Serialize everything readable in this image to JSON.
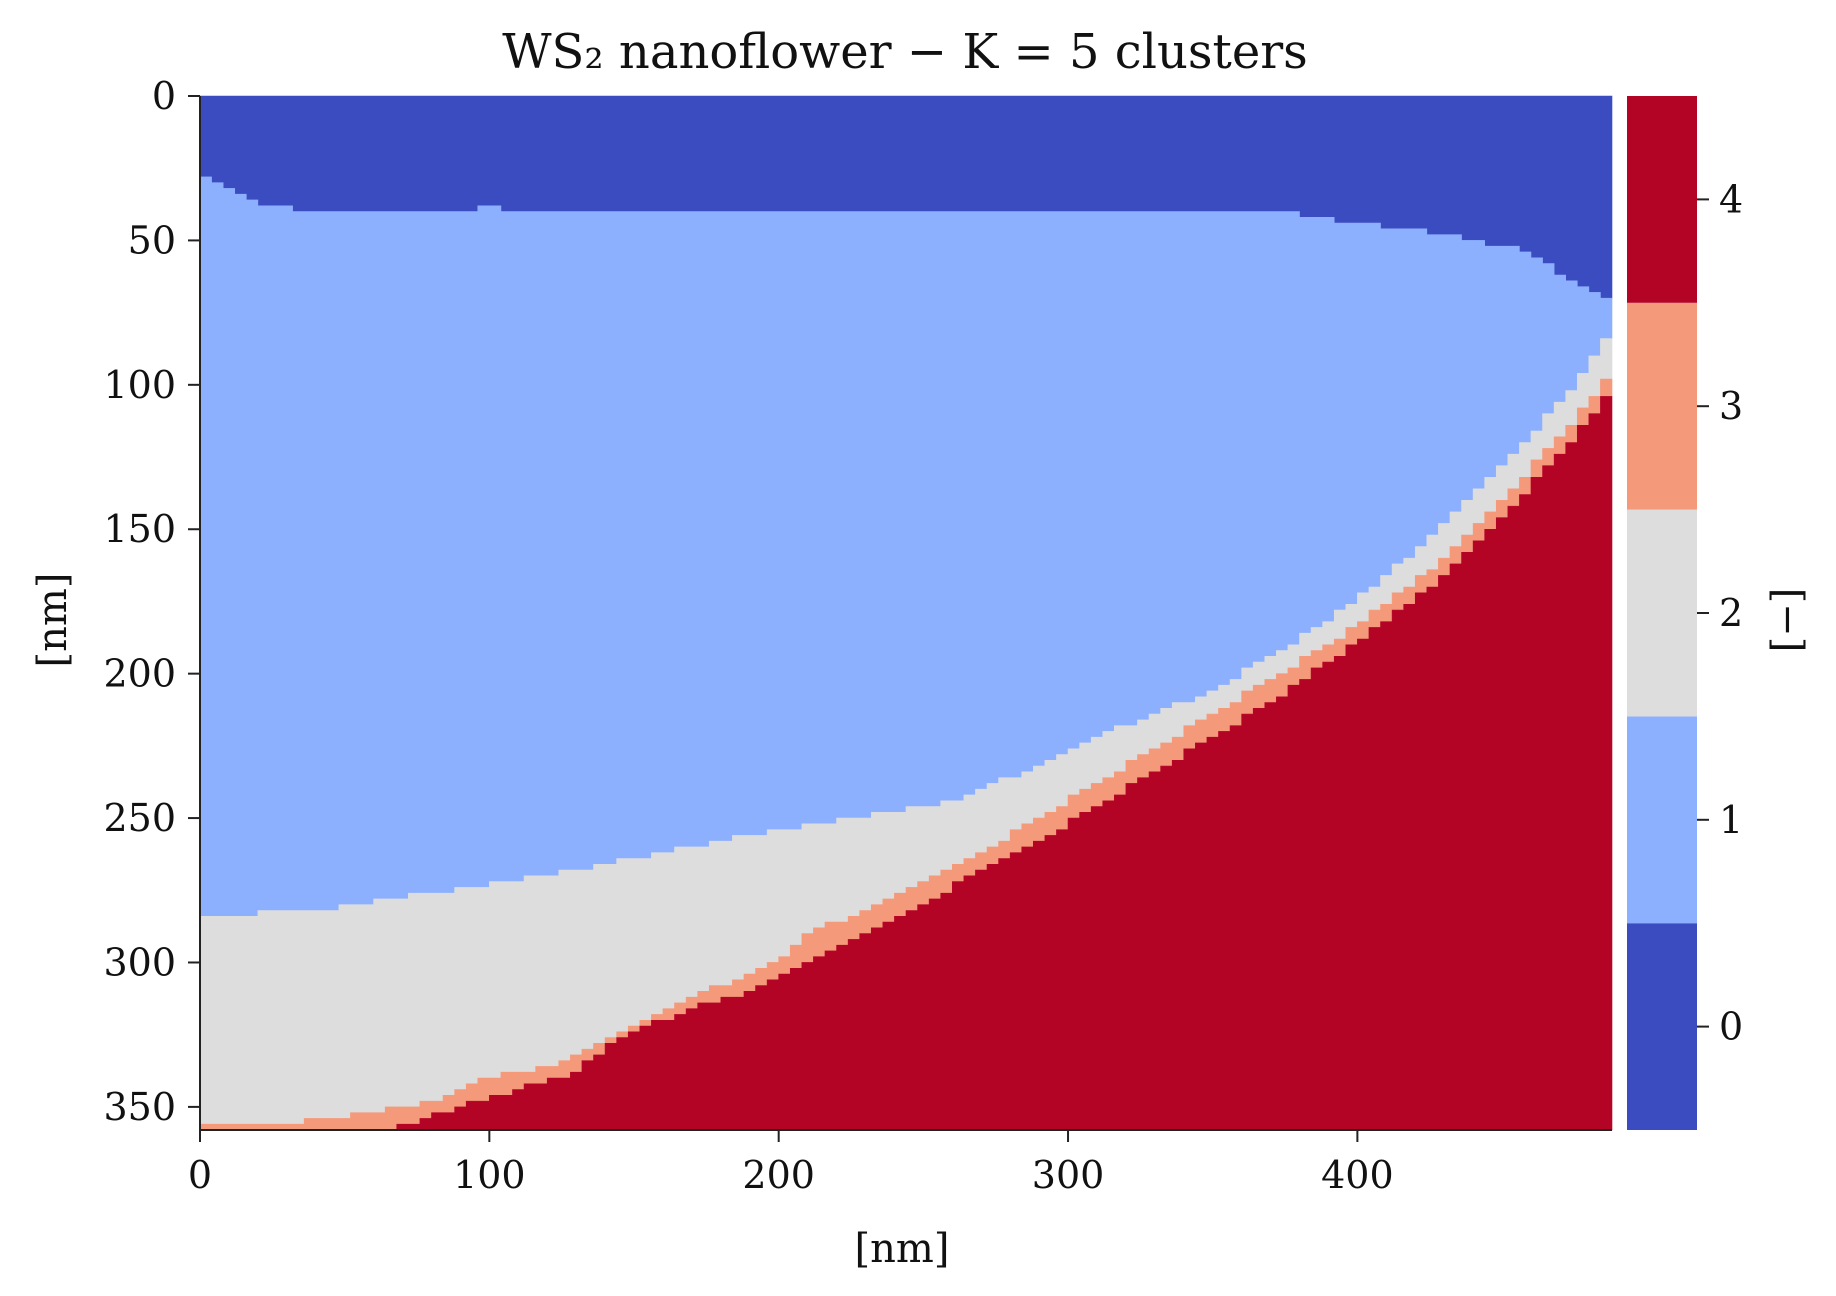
{
  "chart_data": {
    "type": "heatmap",
    "title": "WS₂ nanoflower − K = 5 clusters",
    "xlabel": "[nm]",
    "ylabel": "[nm]",
    "xlim": [
      0,
      488
    ],
    "ylim": [
      358,
      0
    ],
    "x_ticks": [
      0,
      100,
      200,
      300,
      400
    ],
    "y_ticks": [
      0,
      50,
      100,
      150,
      200,
      250,
      300,
      350
    ],
    "grid": false,
    "colorbar": {
      "label": "[−]",
      "ticks": [
        0,
        1,
        2,
        3,
        4
      ],
      "range": [
        -0.5,
        4.5
      ],
      "colors": [
        "#3b4cc0",
        "#8db0fe",
        "#dddddd",
        "#f49a7b",
        "#b40426"
      ]
    },
    "clusters": [
      0,
      1,
      2,
      3,
      4
    ],
    "boundaries": {
      "description_units": "x in nm, y (depth from top) in nm",
      "cluster0_to_cluster1": [
        [
          0,
          26
        ],
        [
          10,
          32
        ],
        [
          15,
          35
        ],
        [
          25,
          38
        ],
        [
          40,
          40
        ],
        [
          95,
          40
        ],
        [
          100,
          38
        ],
        [
          105,
          40
        ],
        [
          200,
          39
        ],
        [
          350,
          39
        ],
        [
          375,
          40
        ],
        [
          400,
          44
        ],
        [
          430,
          48
        ],
        [
          455,
          53
        ],
        [
          465,
          58
        ],
        [
          475,
          64
        ],
        [
          483,
          68
        ],
        [
          488,
          72
        ]
      ],
      "cluster1_to_cluster2": [
        [
          0,
          284
        ],
        [
          40,
          282
        ],
        [
          80,
          276
        ],
        [
          120,
          270
        ],
        [
          140,
          266
        ],
        [
          160,
          262
        ],
        [
          200,
          254
        ],
        [
          240,
          248
        ],
        [
          260,
          244
        ],
        [
          280,
          236
        ],
        [
          300,
          226
        ],
        [
          320,
          218
        ],
        [
          340,
          210
        ],
        [
          360,
          200
        ],
        [
          380,
          188
        ],
        [
          400,
          174
        ],
        [
          420,
          158
        ],
        [
          440,
          138
        ],
        [
          460,
          118
        ],
        [
          475,
          100
        ],
        [
          488,
          80
        ]
      ],
      "cluster2_to_cluster3": [
        [
          35,
          355
        ],
        [
          60,
          352
        ],
        [
          80,
          348
        ],
        [
          100,
          340
        ],
        [
          120,
          336
        ],
        [
          140,
          328
        ],
        [
          150,
          322
        ],
        [
          160,
          316
        ],
        [
          180,
          308
        ],
        [
          200,
          300
        ],
        [
          210,
          290
        ],
        [
          230,
          282
        ],
        [
          250,
          272
        ],
        [
          270,
          262
        ],
        [
          290,
          250
        ],
        [
          310,
          238
        ],
        [
          330,
          226
        ],
        [
          350,
          214
        ],
        [
          370,
          202
        ],
        [
          390,
          190
        ],
        [
          410,
          176
        ],
        [
          430,
          160
        ],
        [
          450,
          140
        ],
        [
          470,
          118
        ],
        [
          488,
          96
        ]
      ],
      "cluster3_to_cluster4": [
        [
          65,
          358
        ],
        [
          90,
          350
        ],
        [
          110,
          344
        ],
        [
          130,
          338
        ],
        [
          140,
          330
        ],
        [
          150,
          324
        ],
        [
          170,
          316
        ],
        [
          190,
          310
        ],
        [
          210,
          300
        ],
        [
          230,
          290
        ],
        [
          250,
          280
        ],
        [
          270,
          268
        ],
        [
          290,
          258
        ],
        [
          310,
          246
        ],
        [
          330,
          234
        ],
        [
          350,
          222
        ],
        [
          370,
          210
        ],
        [
          390,
          196
        ],
        [
          410,
          182
        ],
        [
          430,
          166
        ],
        [
          450,
          146
        ],
        [
          470,
          124
        ],
        [
          480,
          112
        ],
        [
          488,
          102
        ]
      ]
    }
  }
}
